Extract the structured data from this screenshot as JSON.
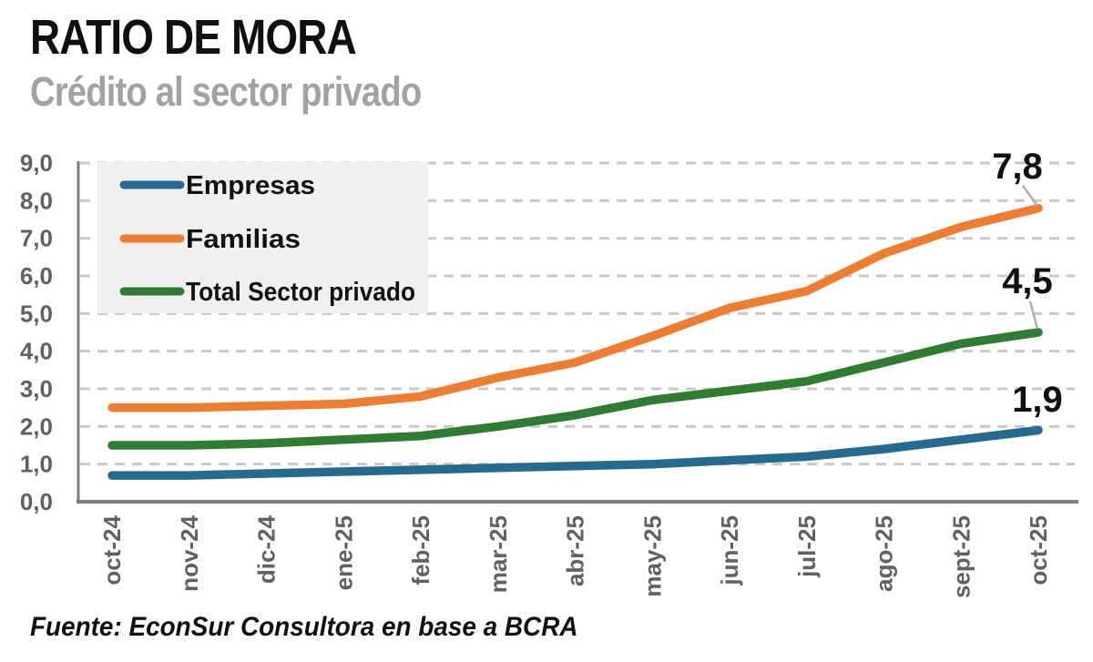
{
  "header": {
    "title": "RATIO DE MORA",
    "subtitle": "Crédito al sector privado"
  },
  "footer": {
    "source": "Fuente: EconSur Consultora en base a BCRA"
  },
  "chart_data": {
    "type": "line",
    "title": "RATIO DE MORA",
    "subtitle": "Crédito al sector privado",
    "source": "Fuente: EconSur Consultora en base a BCRA",
    "categories": [
      "oct-24",
      "nov-24",
      "dic-24",
      "ene-25",
      "feb-25",
      "mar-25",
      "abr-25",
      "may-25",
      "jun-25",
      "jul-25",
      "ago-25",
      "sept-25",
      "oct-25"
    ],
    "y_ticks": [
      "0,0",
      "1,0",
      "2,0",
      "3,0",
      "4,0",
      "5,0",
      "6,0",
      "7,0",
      "8,0",
      "9,0"
    ],
    "ylim": [
      0,
      9
    ],
    "grid": "horizontal-dashed",
    "legend_position": "top-left-inside",
    "series": [
      {
        "name": "Empresas",
        "color": "#266A90",
        "values": [
          0.7,
          0.7,
          0.75,
          0.8,
          0.85,
          0.9,
          0.95,
          1.0,
          1.1,
          1.2,
          1.4,
          1.65,
          1.9
        ],
        "end_label": "1,9"
      },
      {
        "name": "Familias",
        "color": "#ED7D31",
        "values": [
          2.5,
          2.5,
          2.55,
          2.6,
          2.8,
          3.3,
          3.7,
          4.4,
          5.15,
          5.6,
          6.6,
          7.3,
          7.8
        ],
        "end_label": "7,8"
      },
      {
        "name": "Total Sector privado",
        "color": "#2E7D32",
        "values": [
          1.5,
          1.5,
          1.55,
          1.65,
          1.75,
          2.0,
          2.3,
          2.7,
          2.95,
          3.2,
          3.7,
          4.2,
          4.5
        ],
        "end_label": "4,5"
      }
    ],
    "colors": {
      "grid": "#c9c9c9",
      "axis": "#7b7b7b",
      "tick_text": "#616161",
      "data_label_text": "#111111",
      "leader_line": "#b0b0b0",
      "legend_bg": "#f0f0f0",
      "legend_text": "#111111"
    }
  }
}
